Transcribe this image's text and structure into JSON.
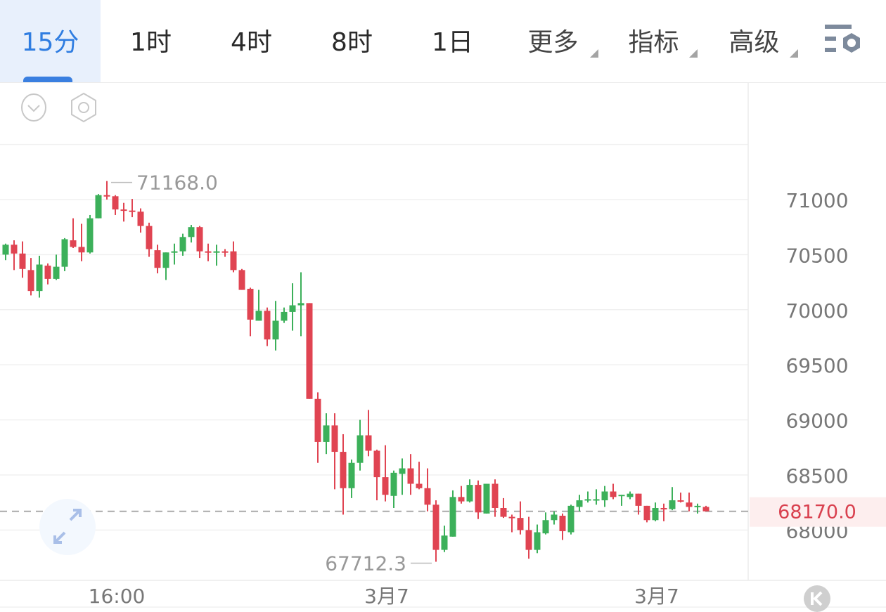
{
  "tabs": [
    {
      "label": "15分",
      "active": true
    },
    {
      "label": "1时"
    },
    {
      "label": "4时"
    },
    {
      "label": "8时"
    },
    {
      "label": "1日"
    },
    {
      "label": "更多",
      "dropdown": true
    },
    {
      "label": "指标",
      "dropdown": true
    },
    {
      "label": "高级",
      "dropdown": true
    }
  ],
  "icons": {
    "settings": "list-settings-icon",
    "collapse": "chevron-down-circle-icon",
    "hexagon": "hexagon-settings-icon",
    "expand": "expand-arrows-icon",
    "k": "k-logo-icon"
  },
  "colors": {
    "up": "#3cb05a",
    "down": "#e04452",
    "accent": "#2f7de1",
    "last_price": "#d9414f"
  },
  "chart_data": {
    "type": "candlestick",
    "ohlc_order": [
      "open",
      "high",
      "low",
      "close"
    ],
    "candles": [
      [
        70500,
        70600,
        70450,
        70590
      ],
      [
        70590,
        70630,
        70360,
        70510
      ],
      [
        70510,
        70620,
        70290,
        70370
      ],
      [
        70360,
        70470,
        70130,
        70170
      ],
      [
        70170,
        70490,
        70110,
        70410
      ],
      [
        70400,
        70420,
        70230,
        70280
      ],
      [
        70280,
        70500,
        70270,
        70390
      ],
      [
        70390,
        70650,
        70350,
        70640
      ],
      [
        70630,
        70830,
        70560,
        70570
      ],
      [
        70570,
        70780,
        70440,
        70520
      ],
      [
        70520,
        70860,
        70510,
        70830
      ],
      [
        70830,
        71050,
        70830,
        71040
      ],
      [
        71040,
        71168,
        71000,
        71030
      ],
      [
        71030,
        71040,
        70860,
        70910
      ],
      [
        70910,
        70970,
        70800,
        70900
      ],
      [
        70900,
        71006,
        70840,
        70890
      ],
      [
        70890,
        70920,
        70700,
        70760
      ],
      [
        70760,
        70790,
        70480,
        70550
      ],
      [
        70540,
        70590,
        70330,
        70380
      ],
      [
        70380,
        70520,
        70270,
        70520
      ],
      [
        70520,
        70600,
        70410,
        70530
      ],
      [
        70530,
        70690,
        70490,
        70660
      ],
      [
        70660,
        70770,
        70610,
        70750
      ],
      [
        70750,
        70760,
        70470,
        70530
      ],
      [
        70530,
        70600,
        70440,
        70520
      ],
      [
        70520,
        70590,
        70400,
        70530
      ],
      [
        70530,
        70550,
        70480,
        70520
      ],
      [
        70530,
        70620,
        70340,
        70360
      ],
      [
        70360,
        70370,
        70180,
        70180
      ],
      [
        70190,
        70200,
        69760,
        69910
      ],
      [
        69900,
        70180,
        69900,
        69990
      ],
      [
        69990,
        70020,
        69670,
        69730
      ],
      [
        69730,
        70080,
        69630,
        69900
      ],
      [
        69900,
        70020,
        69880,
        69980
      ],
      [
        69980,
        70240,
        69810,
        70040
      ],
      [
        70040,
        70340,
        69760,
        70060
      ],
      [
        70060,
        70060,
        69190,
        69190
      ],
      [
        69190,
        69250,
        68610,
        68800
      ],
      [
        68800,
        69060,
        68690,
        68950
      ],
      [
        68950,
        69060,
        68370,
        68710
      ],
      [
        68710,
        68870,
        68140,
        68380
      ],
      [
        68380,
        68640,
        68290,
        68610
      ],
      [
        68610,
        69000,
        68540,
        68860
      ],
      [
        68860,
        69090,
        68670,
        68720
      ],
      [
        68720,
        68730,
        68270,
        68480
      ],
      [
        68480,
        68770,
        68260,
        68320
      ],
      [
        68310,
        68540,
        68200,
        68520
      ],
      [
        68510,
        68650,
        68320,
        68560
      ],
      [
        68560,
        68690,
        68320,
        68420
      ],
      [
        68420,
        68620,
        68370,
        68380
      ],
      [
        68380,
        68560,
        68170,
        68230
      ],
      [
        68230,
        68270,
        67712.3,
        67820
      ],
      [
        67820,
        68040,
        67800,
        67950
      ],
      [
        67940,
        68360,
        67940,
        68300
      ],
      [
        68300,
        68400,
        68240,
        68260
      ],
      [
        68260,
        68460,
        68250,
        68410
      ],
      [
        68410,
        68450,
        68100,
        68160
      ],
      [
        68150,
        68420,
        68150,
        68420
      ],
      [
        68420,
        68460,
        68120,
        68200
      ],
      [
        68200,
        68290,
        68110,
        68120
      ],
      [
        68120,
        68140,
        67980,
        68110
      ],
      [
        68110,
        68260,
        67960,
        68000
      ],
      [
        68000,
        68120,
        67740,
        67820
      ],
      [
        67820,
        68050,
        67790,
        67980
      ],
      [
        67970,
        68160,
        67960,
        68090
      ],
      [
        68090,
        68170,
        68050,
        68140
      ],
      [
        68130,
        68150,
        67910,
        67990
      ],
      [
        67980,
        68230,
        67960,
        68220
      ],
      [
        68210,
        68320,
        68170,
        68270
      ],
      [
        68270,
        68350,
        68250,
        68280
      ],
      [
        68270,
        68370,
        68230,
        68280
      ],
      [
        68270,
        68400,
        68210,
        68350
      ],
      [
        68350,
        68420,
        68280,
        68300
      ],
      [
        68310,
        68320,
        68220,
        68320
      ],
      [
        68300,
        68350,
        68280,
        68330
      ],
      [
        68330,
        68330,
        68140,
        68220
      ],
      [
        68220,
        68220,
        68070,
        68090
      ],
      [
        68090,
        68250,
        68080,
        68200
      ],
      [
        68200,
        68240,
        68080,
        68190
      ],
      [
        68190,
        68390,
        68180,
        68270
      ],
      [
        68270,
        68340,
        68250,
        68260
      ],
      [
        68250,
        68340,
        68170,
        68210
      ],
      [
        68210,
        68240,
        68150,
        68220
      ],
      [
        68210,
        68220,
        68170,
        68170
      ]
    ],
    "y_ticks": [
      71000,
      70500,
      70000,
      69500,
      69000,
      68500,
      68000
    ],
    "y_tick_labels": [
      "71000",
      "70500",
      "70000",
      "69500",
      "69000",
      "68500",
      "68000"
    ],
    "ylim": [
      67700,
      71500
    ],
    "x_ticks": [
      {
        "index": 13,
        "label": "16:00"
      },
      {
        "index": 45,
        "label": "3月7"
      },
      {
        "index": 77,
        "label": "3月7"
      }
    ],
    "high_marker": {
      "index": 12,
      "value": 71168.0,
      "label": "71168.0"
    },
    "low_marker": {
      "index": 51,
      "value": 67712.3,
      "label": "67712.3"
    },
    "last_price": {
      "value": 68170.0,
      "label": "68170.0"
    },
    "grid": true
  }
}
